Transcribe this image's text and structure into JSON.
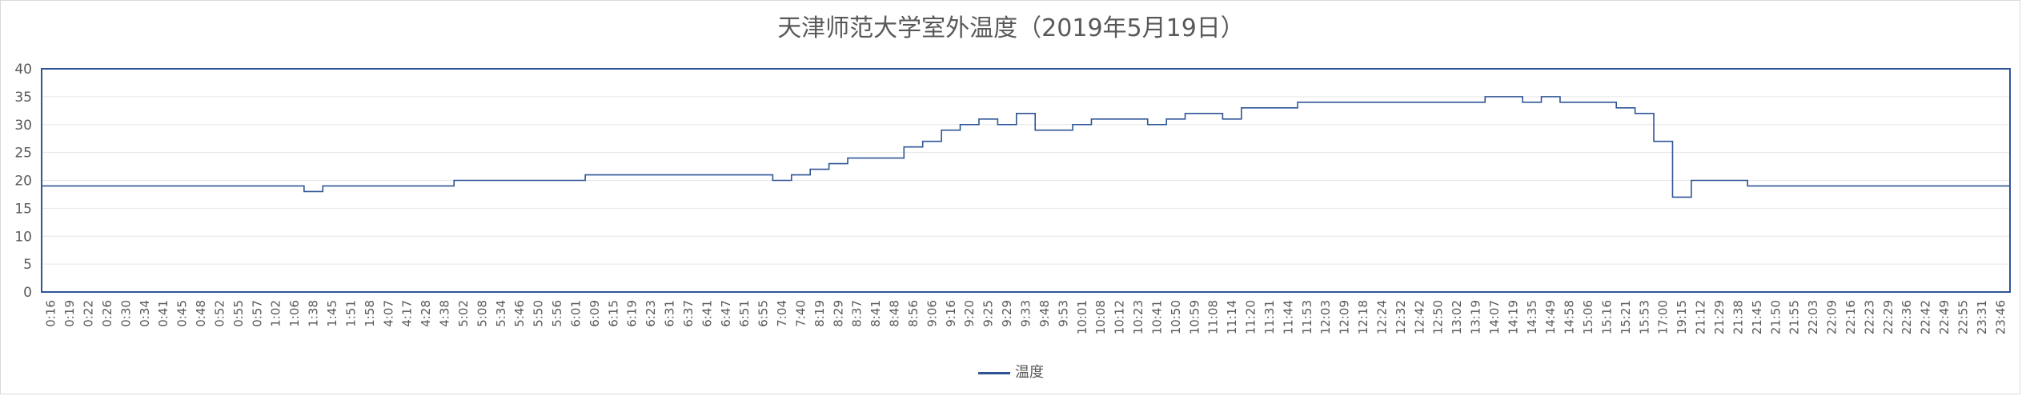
{
  "chart_data": {
    "type": "line",
    "title": "天津师范大学室外温度（2019年5月19日）",
    "xlabel": "",
    "ylabel": "",
    "ylim": [
      0,
      40
    ],
    "yticks": [
      "0",
      "5",
      "10",
      "15",
      "20",
      "25",
      "30",
      "35",
      "40"
    ],
    "grid": true,
    "legend": "bottom",
    "colors": {
      "line": "#2f5597",
      "frame": "#2f5597",
      "grid": "#e6e6e6"
    },
    "x": [
      "0:16",
      "0:19",
      "0:22",
      "0:26",
      "0:30",
      "0:34",
      "0:41",
      "0:45",
      "0:48",
      "0:52",
      "0:55",
      "0:57",
      "1:02",
      "1:06",
      "1:38",
      "1:45",
      "1:51",
      "1:58",
      "4:07",
      "4:17",
      "4:28",
      "4:38",
      "5:02",
      "5:08",
      "5:34",
      "5:46",
      "5:50",
      "5:56",
      "6:01",
      "6:09",
      "6:15",
      "6:19",
      "6:23",
      "6:31",
      "6:37",
      "6:41",
      "6:47",
      "6:51",
      "6:55",
      "7:04",
      "7:40",
      "8:19",
      "8:29",
      "8:37",
      "8:41",
      "8:48",
      "8:56",
      "9:06",
      "9:16",
      "9:20",
      "9:25",
      "9:29",
      "9:33",
      "9:48",
      "9:53",
      "10:01",
      "10:08",
      "10:12",
      "10:23",
      "10:41",
      "10:50",
      "10:59",
      "11:08",
      "11:14",
      "11:20",
      "11:31",
      "11:44",
      "11:53",
      "12:03",
      "12:09",
      "12:18",
      "12:24",
      "12:32",
      "12:42",
      "12:50",
      "13:02",
      "13:19",
      "14:07",
      "14:19",
      "14:35",
      "14:49",
      "14:58",
      "15:06",
      "15:16",
      "15:21",
      "15:53",
      "17:00",
      "19:15",
      "21:12",
      "21:29",
      "21:38",
      "21:45",
      "21:50",
      "21:55",
      "22:03",
      "22:09",
      "22:16",
      "22:23",
      "22:29",
      "22:36",
      "22:42",
      "22:49",
      "22:55",
      "23:31",
      "23:46"
    ],
    "series": [
      {
        "name": "温度",
        "values": [
          19,
          19,
          19,
          19,
          19,
          19,
          19,
          19,
          19,
          19,
          19,
          19,
          19,
          19,
          18,
          19,
          19,
          19,
          19,
          19,
          19,
          19,
          20,
          20,
          20,
          20,
          20,
          20,
          20,
          21,
          21,
          21,
          21,
          21,
          21,
          21,
          21,
          21,
          21,
          20,
          21,
          22,
          23,
          24,
          24,
          24,
          26,
          27,
          29,
          30,
          31,
          30,
          32,
          29,
          29,
          30,
          31,
          31,
          31,
          30,
          31,
          32,
          32,
          31,
          33,
          33,
          33,
          34,
          34,
          34,
          34,
          34,
          34,
          34,
          34,
          34,
          34,
          35,
          35,
          34,
          35,
          34,
          34,
          34,
          33,
          32,
          27,
          17,
          20,
          20,
          20,
          19,
          19,
          19,
          19,
          19,
          19,
          19,
          19,
          19,
          19,
          19,
          19,
          19,
          19
        ]
      }
    ]
  }
}
